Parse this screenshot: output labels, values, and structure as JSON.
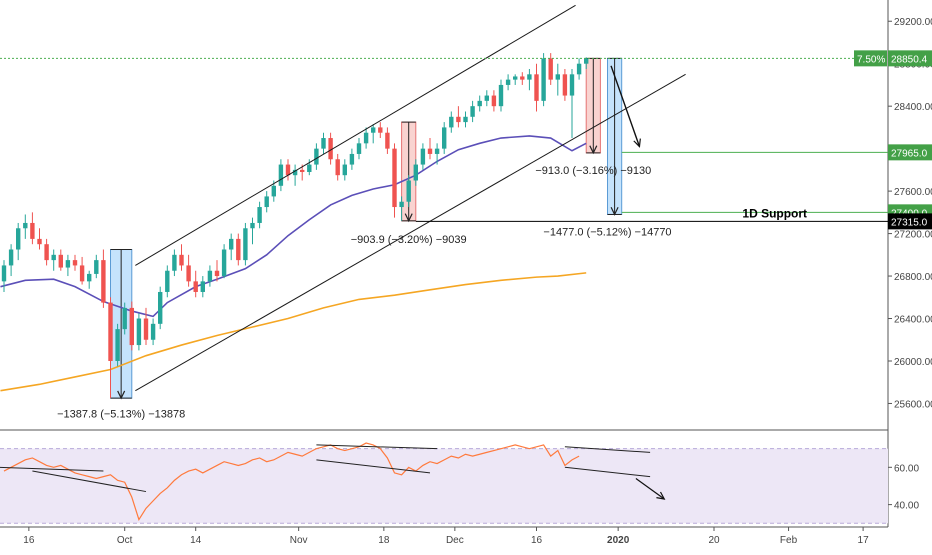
{
  "chart_data": {
    "type": "candlestick",
    "price_axis": {
      "ticks": [
        25600,
        26000,
        26400,
        26800,
        27200,
        27600,
        28000,
        28400,
        28800,
        29200
      ],
      "ylim": [
        25350,
        29400
      ]
    },
    "date_axis": {
      "tick_labels": [
        "16",
        "Oct",
        "14",
        "Nov",
        "18",
        "Dec",
        "16",
        "2020",
        "20",
        "Feb",
        "17"
      ]
    },
    "series": [
      {
        "kind": "candles",
        "color_up": "#26a69a",
        "color_down": "#ef5350",
        "ohlc": [
          [
            26750,
            26950,
            26650,
            26900
          ],
          [
            26900,
            27100,
            26800,
            27050
          ],
          [
            27050,
            27300,
            26950,
            27250
          ],
          [
            27250,
            27380,
            27150,
            27300
          ],
          [
            27300,
            27400,
            27100,
            27150
          ],
          [
            27150,
            27250,
            27050,
            27100
          ],
          [
            27100,
            27150,
            26900,
            26950
          ],
          [
            26950,
            27050,
            26850,
            27000
          ],
          [
            27000,
            27050,
            26850,
            26880
          ],
          [
            26880,
            27000,
            26800,
            26950
          ],
          [
            26950,
            27000,
            26850,
            26900
          ],
          [
            26900,
            26980,
            26720,
            26750
          ],
          [
            26750,
            26850,
            26680,
            26820
          ],
          [
            26820,
            27000,
            26780,
            26950
          ],
          [
            26950,
            27050,
            26500,
            26550
          ],
          [
            26550,
            26600,
            25650,
            26000
          ],
          [
            26000,
            26350,
            25950,
            26300
          ],
          [
            26300,
            26550,
            26250,
            26500
          ],
          [
            26500,
            26560,
            26100,
            26150
          ],
          [
            26150,
            26450,
            26100,
            26400
          ],
          [
            26400,
            26500,
            26150,
            26200
          ],
          [
            26200,
            26400,
            26150,
            26350
          ],
          [
            26350,
            26700,
            26300,
            26650
          ],
          [
            26650,
            26900,
            26600,
            26850
          ],
          [
            26850,
            27050,
            26800,
            27000
          ],
          [
            27000,
            27100,
            26850,
            26900
          ],
          [
            26900,
            27000,
            26700,
            26750
          ],
          [
            26750,
            26850,
            26600,
            26650
          ],
          [
            26650,
            26800,
            26600,
            26750
          ],
          [
            26750,
            26900,
            26700,
            26850
          ],
          [
            26850,
            26950,
            26750,
            26800
          ],
          [
            26800,
            27100,
            26780,
            27050
          ],
          [
            27050,
            27200,
            26950,
            27150
          ],
          [
            27150,
            27200,
            26900,
            26950
          ],
          [
            26950,
            27300,
            26900,
            27250
          ],
          [
            27250,
            27350,
            27100,
            27300
          ],
          [
            27300,
            27500,
            27250,
            27450
          ],
          [
            27450,
            27600,
            27400,
            27550
          ],
          [
            27550,
            27700,
            27500,
            27650
          ],
          [
            27650,
            27900,
            27600,
            27850
          ],
          [
            27850,
            27900,
            27700,
            27750
          ],
          [
            27750,
            27850,
            27650,
            27800
          ],
          [
            27800,
            27850,
            27700,
            27780
          ],
          [
            27780,
            27900,
            27750,
            27850
          ],
          [
            27850,
            28050,
            27800,
            28000
          ],
          [
            28000,
            28150,
            27950,
            28100
          ],
          [
            28100,
            28150,
            27850,
            27900
          ],
          [
            27900,
            27950,
            27700,
            27750
          ],
          [
            27750,
            27900,
            27700,
            27850
          ],
          [
            27850,
            28000,
            27800,
            27950
          ],
          [
            27950,
            28100,
            27900,
            28050
          ],
          [
            28050,
            28200,
            28000,
            28150
          ],
          [
            28150,
            28230,
            28050,
            28200
          ],
          [
            28200,
            28250,
            28100,
            28150
          ],
          [
            28150,
            28200,
            27950,
            28000
          ],
          [
            28000,
            28050,
            27350,
            27450
          ],
          [
            27450,
            27550,
            27320,
            27500
          ],
          [
            27500,
            27750,
            27450,
            27700
          ],
          [
            27700,
            27900,
            27650,
            27850
          ],
          [
            27850,
            28050,
            27800,
            28000
          ],
          [
            28000,
            28100,
            27900,
            27950
          ],
          [
            27950,
            28050,
            27850,
            28000
          ],
          [
            28000,
            28250,
            27950,
            28200
          ],
          [
            28200,
            28350,
            28150,
            28300
          ],
          [
            28300,
            28400,
            28200,
            28250
          ],
          [
            28250,
            28350,
            28200,
            28300
          ],
          [
            28300,
            28450,
            28250,
            28400
          ],
          [
            28400,
            28500,
            28350,
            28450
          ],
          [
            28450,
            28550,
            28400,
            28500
          ],
          [
            28500,
            28550,
            28350,
            28400
          ],
          [
            28400,
            28650,
            28350,
            28600
          ],
          [
            28600,
            28700,
            28550,
            28650
          ],
          [
            28650,
            28700,
            28600,
            28680
          ],
          [
            28680,
            28720,
            28600,
            28650
          ],
          [
            28650,
            28750,
            28550,
            28700
          ],
          [
            28700,
            28800,
            28350,
            28450
          ],
          [
            28450,
            28900,
            28400,
            28850
          ],
          [
            28850,
            28900,
            28600,
            28650
          ],
          [
            28650,
            28800,
            28500,
            28700
          ],
          [
            28700,
            28750,
            28450,
            28500
          ],
          [
            28500,
            28750,
            28100,
            28700
          ],
          [
            28700,
            28850,
            28650,
            28800
          ],
          [
            28800,
            28860,
            28750,
            28850
          ]
        ]
      },
      {
        "kind": "line",
        "color": "#5b4fb8",
        "points": [
          [
            -0.5,
            26700
          ],
          [
            3,
            26760
          ],
          [
            7,
            26770
          ],
          [
            10,
            26700
          ],
          [
            14,
            26560
          ],
          [
            18,
            26470
          ],
          [
            21,
            26420
          ],
          [
            23,
            26550
          ],
          [
            27,
            26700
          ],
          [
            30,
            26770
          ],
          [
            34,
            26870
          ],
          [
            37,
            27000
          ],
          [
            40,
            27180
          ],
          [
            43,
            27330
          ],
          [
            46,
            27470
          ],
          [
            49,
            27560
          ],
          [
            52,
            27620
          ],
          [
            55,
            27660
          ],
          [
            58,
            27750
          ],
          [
            61,
            27880
          ],
          [
            64,
            27990
          ],
          [
            67,
            28050
          ],
          [
            70,
            28100
          ],
          [
            74,
            28120
          ],
          [
            77,
            28100
          ],
          [
            80,
            27980
          ],
          [
            82,
            28050
          ]
        ]
      },
      {
        "kind": "line",
        "color": "#f5a623",
        "points": [
          [
            -0.5,
            25720
          ],
          [
            5,
            25780
          ],
          [
            10,
            25850
          ],
          [
            15,
            25920
          ],
          [
            20,
            26050
          ],
          [
            25,
            26150
          ],
          [
            30,
            26240
          ],
          [
            35,
            26320
          ],
          [
            40,
            26400
          ],
          [
            45,
            26500
          ],
          [
            50,
            26580
          ],
          [
            55,
            26620
          ],
          [
            60,
            26670
          ],
          [
            65,
            26720
          ],
          [
            70,
            26760
          ],
          [
            75,
            26790
          ],
          [
            78,
            26800
          ],
          [
            82,
            26830
          ]
        ]
      }
    ],
    "channel": {
      "color": "#1a1a1a",
      "lines": [
        [
          [
            18.5,
            26900
          ],
          [
            80.5,
            29350
          ]
        ],
        [
          [
            18.5,
            25720
          ],
          [
            96,
            28700
          ]
        ]
      ]
    },
    "measures": [
      {
        "start": 15,
        "end": 18,
        "from": 27050,
        "to": 25650,
        "fill": "#bbdefb",
        "stroke": "#5b9bd5",
        "label": "−1387.8 (−5.13%) −13878",
        "label_bar": 16.5,
        "label_price": 25470
      },
      {
        "start": 56,
        "end": 58,
        "from": 28250,
        "to": 27320,
        "fill": "#f8cbc8",
        "stroke": "#e57373",
        "label": "−903.9 (−3.20%) −9039",
        "label_bar": 57,
        "label_price": 27110
      },
      {
        "start": 82,
        "end": 84,
        "from": 28850,
        "to": 27960,
        "fill": "#f8cbc8",
        "stroke": "#e57373",
        "label": "−913.0 (−3.16%) −9130",
        "label_bar": 83,
        "label_price": 27760
      },
      {
        "start": 85,
        "end": 87,
        "from": 28850,
        "to": 27380,
        "fill": "#bbdefb",
        "stroke": "#5b9bd5",
        "label": "−1477.0 (−5.12%) −14770",
        "label_bar": 85,
        "label_price": 27180
      }
    ],
    "horizontal_lines": [
      {
        "price": 28850.4,
        "color": "#4caf50",
        "style": "dotted",
        "from_bar": -1
      },
      {
        "price": 27965.0,
        "color": "#4caf50",
        "style": "solid",
        "from_bar": 87
      },
      {
        "price": 27400.0,
        "color": "#4caf50",
        "style": "solid",
        "from_bar": 87
      },
      {
        "price": 27315.0,
        "color": "#000000",
        "style": "solid",
        "from_bar": 58
      }
    ],
    "price_labels": [
      {
        "price": 28850.4,
        "text": "28850.4",
        "bg": "#43a047",
        "fg": "#ffffff",
        "prefix": "7.50%"
      },
      {
        "price": 27965.0,
        "text": "27965.0",
        "bg": "#43a047",
        "fg": "#ffffff"
      },
      {
        "price": 27400.0,
        "text": "27400.0",
        "bg": "#43a047",
        "fg": "#ffffff"
      },
      {
        "price": 27315.0,
        "text": "27315.0",
        "bg": "#000000",
        "fg": "#ffffff"
      }
    ],
    "annotations": [
      {
        "text": "1D Support",
        "bar": 104,
        "price": 27400
      }
    ],
    "arrows": [
      {
        "from": [
          85.5,
          28780
        ],
        "to": [
          89.5,
          28020
        ]
      }
    ],
    "rsi": {
      "ticks": [
        40.0,
        60.0
      ],
      "ylim": [
        28,
        80
      ],
      "band": [
        30,
        70
      ],
      "band_fill": "#ede7f6",
      "line_color": "#ff7a3d",
      "values": [
        58,
        60,
        62,
        64,
        65,
        63,
        61,
        60,
        61,
        59,
        57,
        56,
        55,
        54,
        55,
        56,
        53,
        52,
        44,
        32,
        38,
        42,
        46,
        49,
        53,
        56,
        58,
        59,
        57,
        59,
        61,
        63,
        62,
        61,
        62,
        64,
        65,
        63,
        64,
        66,
        68,
        67,
        66,
        68,
        70,
        71,
        72,
        70,
        69,
        70,
        71,
        73,
        72,
        70,
        65,
        57,
        56,
        60,
        58,
        61,
        63,
        62,
        64,
        66,
        65,
        67,
        66,
        67,
        68,
        69,
        70,
        71,
        72,
        71,
        70,
        71,
        72,
        66,
        69,
        61,
        64,
        66
      ],
      "trendlines": [
        [
          [
            -1,
            60
          ],
          [
            14,
            58
          ]
        ],
        [
          [
            4,
            58
          ],
          [
            20,
            47
          ]
        ],
        [
          [
            44,
            72
          ],
          [
            61,
            70
          ]
        ],
        [
          [
            44,
            64
          ],
          [
            60,
            57
          ]
        ],
        [
          [
            79,
            71
          ],
          [
            91,
            68
          ]
        ],
        [
          [
            79,
            60
          ],
          [
            91,
            55
          ]
        ]
      ],
      "arrow": {
        "from": [
          89,
          54
        ],
        "to": [
          93,
          43
        ]
      }
    }
  }
}
